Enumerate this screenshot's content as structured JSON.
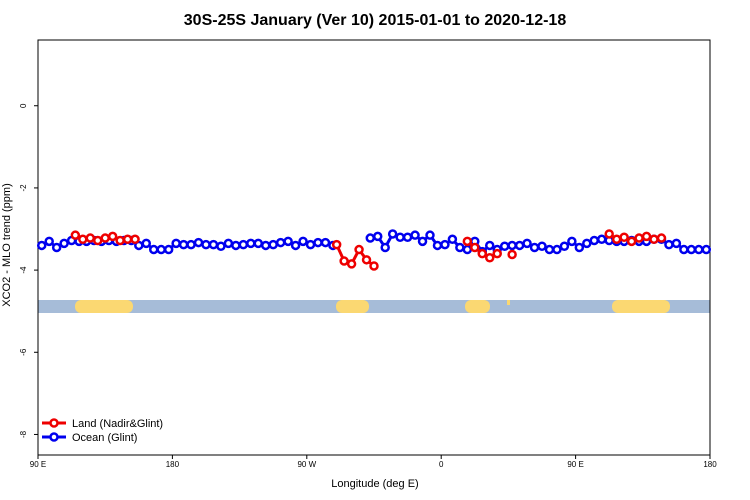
{
  "chart_data": {
    "type": "line",
    "title": "30S-25S January (Ver 10)   2015-01-01 to 2020-12-18",
    "x_label": "Longitude (deg E)",
    "y_label": "XCO2 - MLO trend (ppm)",
    "xlim": [
      90,
      540
    ],
    "ylim": [
      -8.5,
      1.6
    ],
    "xticks": [
      {
        "value": 90,
        "label": "90 E"
      },
      180,
      {
        "value": 270,
        "label": "90 W"
      },
      {
        "value": 360,
        "label": "0"
      },
      {
        "value": 450,
        "label": "90 E"
      },
      {
        "value": 540,
        "label": "180"
      }
    ],
    "yticks": [
      0,
      -2,
      -4,
      -6,
      -8
    ],
    "legend": "bottom-left",
    "series": [
      {
        "name": "Land (Nadir&Glint)",
        "color": "#ee0000",
        "x": [
          115,
          120,
          125,
          130,
          135,
          140,
          145,
          150,
          155,
          160,
          290,
          295,
          300,
          305,
          310,
          315,
          320,
          377.5,
          382.5,
          387.5,
          392.5,
          397.5,
          402.5,
          407.5,
          412.5,
          472.5,
          477.5,
          482.5,
          487.5,
          492.5,
          497.5,
          502.5,
          507.5
        ],
        "values": [
          -3.15,
          -3.25,
          -3.22,
          -3.28,
          -3.22,
          -3.18,
          -3.28,
          -3.25,
          -3.25,
          null,
          -3.38,
          -3.78,
          -3.85,
          -3.5,
          -3.75,
          -3.9,
          null,
          -3.3,
          -3.45,
          -3.6,
          -3.7,
          -3.6,
          null,
          -3.62,
          null,
          -3.12,
          -3.25,
          -3.2,
          -3.3,
          -3.22,
          -3.18,
          -3.25,
          -3.22
        ]
      },
      {
        "name": "Ocean (Glint)",
        "color": "#0000ee",
        "x": [
          92.5,
          97.5,
          102.5,
          107.5,
          112.5,
          117.5,
          122.5,
          127.5,
          132.5,
          137.5,
          142.5,
          147.5,
          152.5,
          157.5,
          162.5,
          167.5,
          172.5,
          177.5,
          182.5,
          187.5,
          192.5,
          197.5,
          202.5,
          207.5,
          212.5,
          217.5,
          222.5,
          227.5,
          232.5,
          237.5,
          242.5,
          247.5,
          252.5,
          257.5,
          262.5,
          267.5,
          272.5,
          277.5,
          282.5,
          287.5,
          300,
          312.5,
          317.5,
          322.5,
          327.5,
          332.5,
          337.5,
          342.5,
          347.5,
          352.5,
          357.5,
          362.5,
          367.5,
          372.5,
          377.5,
          382.5,
          387.5,
          392.5,
          397.5,
          402.5,
          407.5,
          412.5,
          417.5,
          422.5,
          427.5,
          432.5,
          437.5,
          442.5,
          447.5,
          452.5,
          457.5,
          462.5,
          467.5,
          472.5,
          477.5,
          482.5,
          487.5,
          492.5,
          497.5,
          502.5,
          507.5,
          512.5,
          517.5,
          522.5,
          527.5,
          532.5,
          537.5
        ],
        "values": [
          -3.4,
          -3.3,
          -3.45,
          -3.35,
          -3.28,
          -3.3,
          -3.3,
          -3.28,
          -3.3,
          -3.28,
          -3.3,
          -3.28,
          -3.28,
          -3.4,
          -3.35,
          -3.5,
          -3.5,
          -3.5,
          -3.35,
          -3.38,
          -3.38,
          -3.33,
          -3.38,
          -3.38,
          -3.42,
          -3.35,
          -3.4,
          -3.38,
          -3.35,
          -3.35,
          -3.4,
          -3.38,
          -3.33,
          -3.3,
          -3.4,
          -3.3,
          -3.38,
          -3.33,
          -3.33,
          -3.4,
          null,
          -3.22,
          -3.18,
          -3.45,
          -3.12,
          -3.2,
          -3.2,
          -3.15,
          -3.3,
          -3.15,
          -3.4,
          -3.38,
          -3.25,
          -3.45,
          -3.5,
          -3.3,
          -3.55,
          -3.4,
          -3.5,
          -3.42,
          -3.4,
          -3.4,
          -3.35,
          -3.45,
          -3.42,
          -3.5,
          -3.5,
          -3.42,
          -3.3,
          -3.45,
          -3.35,
          -3.28,
          -3.25,
          -3.28,
          -3.3,
          -3.3,
          -3.28,
          -3.3,
          -3.3,
          -3.25,
          -3.25,
          -3.38,
          -3.35,
          -3.5,
          -3.5,
          -3.5,
          -3.5
        ]
      }
    ]
  }
}
